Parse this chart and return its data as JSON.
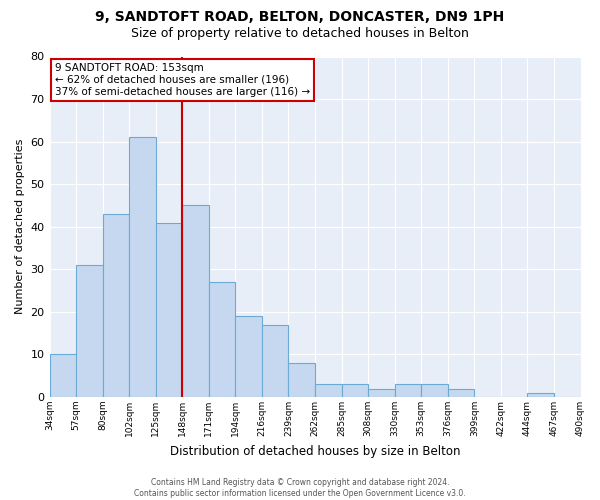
{
  "title": "9, SANDTOFT ROAD, BELTON, DONCASTER, DN9 1PH",
  "subtitle": "Size of property relative to detached houses in Belton",
  "xlabel": "Distribution of detached houses by size in Belton",
  "ylabel": "Number of detached properties",
  "bar_values": [
    10,
    31,
    43,
    61,
    41,
    45,
    27,
    19,
    17,
    8,
    3,
    3,
    2,
    3,
    3,
    2,
    0,
    0,
    1,
    0
  ],
  "bin_labels": [
    "34sqm",
    "57sqm",
    "80sqm",
    "102sqm",
    "125sqm",
    "148sqm",
    "171sqm",
    "194sqm",
    "216sqm",
    "239sqm",
    "262sqm",
    "285sqm",
    "308sqm",
    "330sqm",
    "353sqm",
    "376sqm",
    "399sqm",
    "422sqm",
    "444sqm",
    "467sqm",
    "490sqm"
  ],
  "bar_color": "#c5d8f0",
  "bar_edge_color": "#6aaad4",
  "vline_color": "#cc0000",
  "ylim": [
    0,
    80
  ],
  "yticks": [
    0,
    10,
    20,
    30,
    40,
    50,
    60,
    70,
    80
  ],
  "annotation_title": "9 SANDTOFT ROAD: 153sqm",
  "annotation_line1": "← 62% of detached houses are smaller (196)",
  "annotation_line2": "37% of semi-detached houses are larger (116) →",
  "annotation_box_color": "#ffffff",
  "annotation_box_edge": "#cc0000",
  "footer1": "Contains HM Land Registry data © Crown copyright and database right 2024.",
  "footer2": "Contains public sector information licensed under the Open Government Licence v3.0.",
  "n_bins": 20,
  "vline_bin": 5,
  "background_color": "#e8eef8",
  "grid_color": "#ffffff",
  "title_fontsize": 10,
  "subtitle_fontsize": 9
}
